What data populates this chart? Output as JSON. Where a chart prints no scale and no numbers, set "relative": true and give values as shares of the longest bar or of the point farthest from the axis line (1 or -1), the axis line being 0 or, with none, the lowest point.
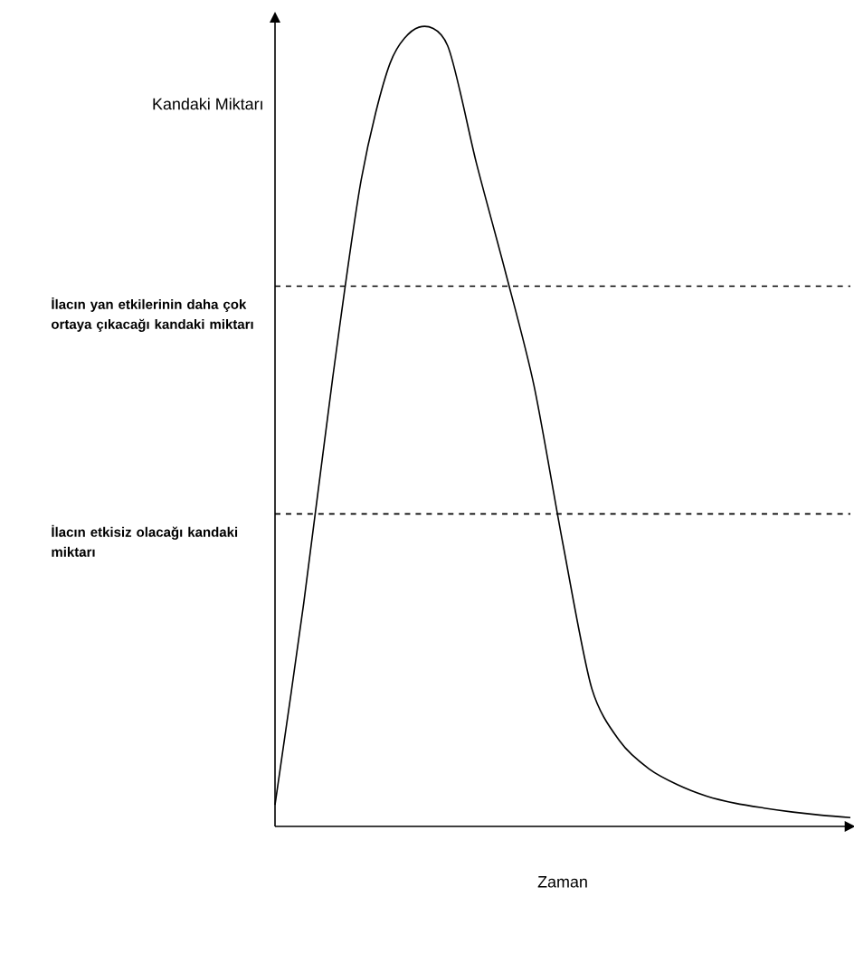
{
  "chart_data": {
    "type": "line",
    "relative": true,
    "xlabel": "Zaman",
    "ylabel": "Kandaki Miktarı",
    "categories": [
      null,
      null,
      null,
      null,
      null,
      null,
      null,
      null,
      null,
      null,
      null,
      null,
      null,
      null,
      null,
      null,
      null,
      null,
      null,
      null,
      null
    ],
    "series": [
      {
        "color": "#000000",
        "values": [
          0.027,
          0.28,
          0.56,
          0.81,
          0.955,
          1.0,
          0.977,
          0.83,
          0.695,
          0.552,
          0.355,
          0.174,
          0.106,
          0.072,
          0.052,
          0.038,
          0.029,
          0.023,
          0.018,
          0.014,
          0.011
        ]
      }
    ],
    "ref_lines": [
      {
        "axis": "y",
        "value": 0.676,
        "label": "İlacın yan etkilerinin daha çok ortaya çıkacağı kandaki miktarı",
        "color": "#000000",
        "line_style": "dashed"
      },
      {
        "axis": "y",
        "value": 0.391,
        "label": "İlacın etkisiz olacağı kandaki miktarı",
        "color": "#000000",
        "line_style": "dashed"
      }
    ],
    "marker": "none",
    "line_style": "solid"
  }
}
